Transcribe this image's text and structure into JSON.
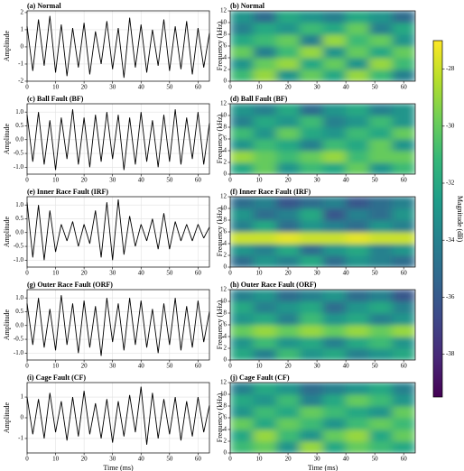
{
  "chart_data": [
    {
      "type": "line",
      "title": "(a) Normal",
      "ylabel": "Amplitude",
      "color": "#000000",
      "grid": true,
      "x": [
        0,
        2,
        4,
        6,
        8,
        10,
        12,
        14,
        16,
        18,
        20,
        22,
        24,
        26,
        28,
        30,
        32,
        34,
        36,
        38,
        40,
        42,
        44,
        46,
        48,
        50,
        52,
        54,
        56,
        58,
        60,
        62,
        64
      ],
      "values": [
        1.2,
        -1.4,
        1.6,
        -1.1,
        1.8,
        -1.5,
        1.3,
        -1.7,
        1.1,
        -1.2,
        1.4,
        -1.6,
        0.9,
        -1.0,
        1.5,
        -1.3,
        1.1,
        -1.8,
        1.7,
        -1.2,
        1.3,
        -1.5,
        1.0,
        -1.1,
        1.6,
        -1.4,
        1.2,
        -1.3,
        1.5,
        -1.6,
        1.1,
        -1.2,
        0.8
      ],
      "xlim": [
        0,
        64
      ],
      "xticks": [
        0,
        10,
        20,
        30,
        40,
        50,
        60
      ],
      "ylim": [
        -2,
        2.1
      ],
      "yticks": [
        -2,
        -1,
        0,
        1,
        2
      ]
    },
    {
      "type": "line",
      "title": "(c) Ball Fault (BF)",
      "ylabel": "Amplitude",
      "color": "#000000",
      "grid": true,
      "x": [
        0,
        2,
        4,
        6,
        8,
        10,
        12,
        14,
        16,
        18,
        20,
        22,
        24,
        26,
        28,
        30,
        32,
        34,
        36,
        38,
        40,
        42,
        44,
        46,
        48,
        50,
        52,
        54,
        56,
        58,
        60,
        62,
        64
      ],
      "values": [
        0.9,
        -0.8,
        1.0,
        -0.9,
        0.7,
        -1.1,
        0.8,
        -0.7,
        1.1,
        -0.9,
        0.8,
        -1.0,
        0.9,
        -0.8,
        1.0,
        -0.7,
        0.9,
        -1.1,
        0.8,
        -0.9,
        1.0,
        -0.8,
        0.7,
        -1.0,
        0.9,
        -0.8,
        1.1,
        -0.9,
        0.8,
        -0.7,
        1.0,
        -0.9,
        0.6
      ],
      "xlim": [
        0,
        64
      ],
      "xticks": [
        0,
        10,
        20,
        30,
        40,
        50,
        60
      ],
      "ylim": [
        -1.25,
        1.3
      ],
      "yticks": [
        {
          "value": -1,
          "label": "-1.0"
        },
        {
          "value": -0.5,
          "label": "-0.5"
        },
        {
          "value": 0,
          "label": "0.0"
        },
        {
          "value": 0.5,
          "label": "0.5"
        },
        {
          "value": 1,
          "label": "1.0"
        }
      ]
    },
    {
      "type": "line",
      "title": "(e) Inner Race Fault (IRF)",
      "ylabel": "Amplitude",
      "color": "#000000",
      "grid": true,
      "x": [
        0,
        2,
        4,
        6,
        8,
        10,
        12,
        14,
        16,
        18,
        20,
        22,
        24,
        26,
        28,
        30,
        32,
        34,
        36,
        38,
        40,
        42,
        44,
        46,
        48,
        50,
        52,
        54,
        56,
        58,
        60,
        62,
        64
      ],
      "values": [
        1.1,
        -0.9,
        1.0,
        -1.0,
        0.8,
        -0.7,
        0.3,
        -0.3,
        0.4,
        -0.5,
        0.3,
        -0.4,
        0.8,
        -0.9,
        1.1,
        -1.0,
        1.2,
        -0.8,
        0.6,
        -0.5,
        0.3,
        -0.3,
        0.5,
        -0.6,
        0.7,
        -0.6,
        0.4,
        -0.3,
        0.3,
        -0.3,
        0.3,
        -0.2,
        0.2
      ],
      "xlim": [
        0,
        64
      ],
      "xticks": [
        0,
        10,
        20,
        30,
        40,
        50,
        60
      ],
      "ylim": [
        -1.25,
        1.3
      ],
      "yticks": [
        {
          "value": -1,
          "label": "-1.0"
        },
        {
          "value": -0.5,
          "label": "-0.5"
        },
        {
          "value": 0,
          "label": "0.0"
        },
        {
          "value": 0.5,
          "label": "0.5"
        },
        {
          "value": 1,
          "label": "1.0"
        }
      ]
    },
    {
      "type": "line",
      "title": "(g) Outer Race Fault (ORF)",
      "ylabel": "Amplitude",
      "color": "#000000",
      "grid": true,
      "x": [
        0,
        2,
        4,
        6,
        8,
        10,
        12,
        14,
        16,
        18,
        20,
        22,
        24,
        26,
        28,
        30,
        32,
        34,
        36,
        38,
        40,
        42,
        44,
        46,
        48,
        50,
        52,
        54,
        56,
        58,
        60,
        62,
        64
      ],
      "values": [
        0.8,
        -0.7,
        1.0,
        -0.8,
        0.6,
        -0.9,
        1.1,
        -0.7,
        0.8,
        -1.0,
        0.9,
        -0.8,
        0.7,
        -1.1,
        1.0,
        -0.6,
        0.8,
        -0.9,
        1.0,
        -0.7,
        0.9,
        -0.8,
        0.6,
        -1.0,
        0.8,
        -0.7,
        1.0,
        -0.9,
        0.7,
        -0.8,
        0.9,
        -0.6,
        0.5
      ],
      "xlim": [
        0,
        64
      ],
      "xticks": [
        0,
        10,
        20,
        30,
        40,
        50,
        60
      ],
      "ylim": [
        -1.25,
        1.3
      ],
      "yticks": [
        {
          "value": -1,
          "label": "-1.0"
        },
        {
          "value": -0.5,
          "label": "-0.5"
        },
        {
          "value": 0,
          "label": "0.0"
        },
        {
          "value": 0.5,
          "label": "0.5"
        },
        {
          "value": 1,
          "label": "1.0"
        }
      ]
    },
    {
      "type": "line",
      "title": "(i) Cage Fault (CF)",
      "ylabel": "Amplitude",
      "xlabel": "Time (ms)",
      "color": "#000000",
      "grid": true,
      "x": [
        0,
        2,
        4,
        6,
        8,
        10,
        12,
        14,
        16,
        18,
        20,
        22,
        24,
        26,
        28,
        30,
        32,
        34,
        36,
        38,
        40,
        42,
        44,
        46,
        48,
        50,
        52,
        54,
        56,
        58,
        60,
        62,
        64
      ],
      "values": [
        1.0,
        -0.8,
        0.9,
        -1.0,
        1.2,
        -0.7,
        0.8,
        -1.1,
        1.0,
        -0.9,
        1.3,
        -0.8,
        0.7,
        -1.0,
        0.9,
        -1.2,
        0.8,
        -0.9,
        1.1,
        -0.7,
        1.5,
        -1.3,
        1.2,
        -1.0,
        0.9,
        -0.8,
        1.0,
        -1.1,
        0.8,
        -0.9,
        1.0,
        -0.7,
        0.6
      ],
      "xlim": [
        0,
        64
      ],
      "xticks": [
        0,
        10,
        20,
        30,
        40,
        50,
        60
      ],
      "ylim": [
        -1.7,
        1.7
      ],
      "yticks": [
        -1,
        0,
        1
      ]
    },
    {
      "type": "heatmap",
      "title": "(b) Normal",
      "ylabel": "Frequency (kHz)",
      "xlim": [
        0,
        64
      ],
      "xticks": [
        0,
        10,
        20,
        30,
        40,
        50,
        60
      ],
      "ylim": [
        0,
        12
      ],
      "yticks": [
        0,
        2,
        4,
        6,
        8,
        10,
        12
      ],
      "z": [
        [
          -31,
          -29,
          -33,
          -30,
          -32,
          -29,
          -31,
          -34
        ],
        [
          -33,
          -30,
          -29,
          -32,
          -30,
          -33,
          -29,
          -31
        ],
        [
          -30,
          -34,
          -31,
          -29,
          -33,
          -30,
          -32,
          -30
        ],
        [
          -32,
          -31,
          -30,
          -34,
          -29,
          -31,
          -30,
          -33
        ],
        [
          -34,
          -32,
          -33,
          -31,
          -32,
          -30,
          -34,
          -32
        ],
        [
          -33,
          -35,
          -32,
          -33,
          -34,
          -32,
          -33,
          -35
        ]
      ]
    },
    {
      "type": "heatmap",
      "title": "(d) Ball Fault (BF)",
      "ylabel": "Frequency (kHz)",
      "xlim": [
        0,
        64
      ],
      "xticks": [
        0,
        10,
        20,
        30,
        40,
        50,
        60
      ],
      "ylim": [
        0,
        12
      ],
      "yticks": [
        0,
        2,
        4,
        6,
        8,
        10,
        12
      ],
      "z": [
        [
          -32,
          -30,
          -33,
          -31,
          -32,
          -30,
          -33,
          -31
        ],
        [
          -29,
          -30,
          -31,
          -30,
          -29,
          -31,
          -30,
          -30
        ],
        [
          -33,
          -31,
          -32,
          -34,
          -31,
          -32,
          -30,
          -33
        ],
        [
          -31,
          -33,
          -30,
          -32,
          -33,
          -31,
          -32,
          -30
        ],
        [
          -34,
          -32,
          -33,
          -31,
          -34,
          -33,
          -31,
          -33
        ],
        [
          -33,
          -34,
          -32,
          -35,
          -33,
          -32,
          -34,
          -33
        ]
      ]
    },
    {
      "type": "heatmap",
      "title": "(f) Inner Race Fault (IRF)",
      "ylabel": "Frequency (kHz)",
      "xlim": [
        0,
        64
      ],
      "xticks": [
        0,
        10,
        20,
        30,
        40,
        50,
        60
      ],
      "ylim": [
        0,
        12
      ],
      "yticks": [
        0,
        2,
        4,
        6,
        8,
        10,
        12
      ],
      "z": [
        [
          -35,
          -33,
          -34,
          -32,
          -35,
          -33,
          -34,
          -35
        ],
        [
          -33,
          -34,
          -32,
          -35,
          -33,
          -32,
          -34,
          -33
        ],
        [
          -28,
          -28,
          -27.5,
          -28,
          -28,
          -27.5,
          -28,
          -28
        ],
        [
          -34,
          -32,
          -35,
          -33,
          -34,
          -35,
          -33,
          -34
        ],
        [
          -33,
          -35,
          -34,
          -32,
          -36,
          -34,
          -35,
          -33
        ],
        [
          -35,
          -34,
          -36,
          -35,
          -34,
          -36,
          -35,
          -34
        ]
      ]
    },
    {
      "type": "heatmap",
      "title": "(h) Outer Race Fault (ORF)",
      "ylabel": "Frequency (kHz)",
      "xlim": [
        0,
        64
      ],
      "xticks": [
        0,
        10,
        20,
        30,
        40,
        50,
        60
      ],
      "ylim": [
        0,
        12
      ],
      "yticks": [
        0,
        2,
        4,
        6,
        8,
        10,
        12
      ],
      "z": [
        [
          -32,
          -34,
          -31,
          -33,
          -32,
          -34,
          -33,
          -32
        ],
        [
          -33,
          -31,
          -33,
          -32,
          -34,
          -32,
          -31,
          -33
        ],
        [
          -30,
          -29,
          -30,
          -29,
          -30,
          -29,
          -30,
          -29
        ],
        [
          -33,
          -32,
          -34,
          -31,
          -33,
          -32,
          -34,
          -33
        ],
        [
          -32,
          -34,
          -33,
          -32,
          -35,
          -33,
          -32,
          -34
        ],
        [
          -34,
          -33,
          -35,
          -34,
          -33,
          -35,
          -34,
          -36
        ]
      ]
    },
    {
      "type": "heatmap",
      "title": "(j) Cage Fault (CF)",
      "ylabel": "Frequency (kHz)",
      "xlabel": "Time (ms)",
      "xlim": [
        0,
        64
      ],
      "xticks": [
        0,
        10,
        20,
        30,
        40,
        50,
        60
      ],
      "ylim": [
        0,
        12
      ],
      "yticks": [
        0,
        2,
        4,
        6,
        8,
        10,
        12
      ],
      "z": [
        [
          -31,
          -30,
          -33,
          -29,
          -32,
          -30,
          -31,
          -32
        ],
        [
          -32,
          -29,
          -31,
          -33,
          -30,
          -29,
          -32,
          -30
        ],
        [
          -30,
          -32,
          -30,
          -31,
          -33,
          -31,
          -30,
          -31
        ],
        [
          -33,
          -31,
          -32,
          -30,
          -31,
          -32,
          -33,
          -30
        ],
        [
          -32,
          -33,
          -31,
          -34,
          -32,
          -30,
          -31,
          -33
        ],
        [
          -34,
          -32,
          -33,
          -35,
          -34,
          -33,
          -32,
          -34
        ]
      ]
    },
    {
      "type": "colorbar",
      "label": "Magnitude (dB)",
      "colormap": "viridis",
      "ylim": [
        -39.5,
        -27
      ],
      "yticks": [
        -38,
        -36,
        -34,
        -32,
        -30,
        -28
      ]
    }
  ]
}
